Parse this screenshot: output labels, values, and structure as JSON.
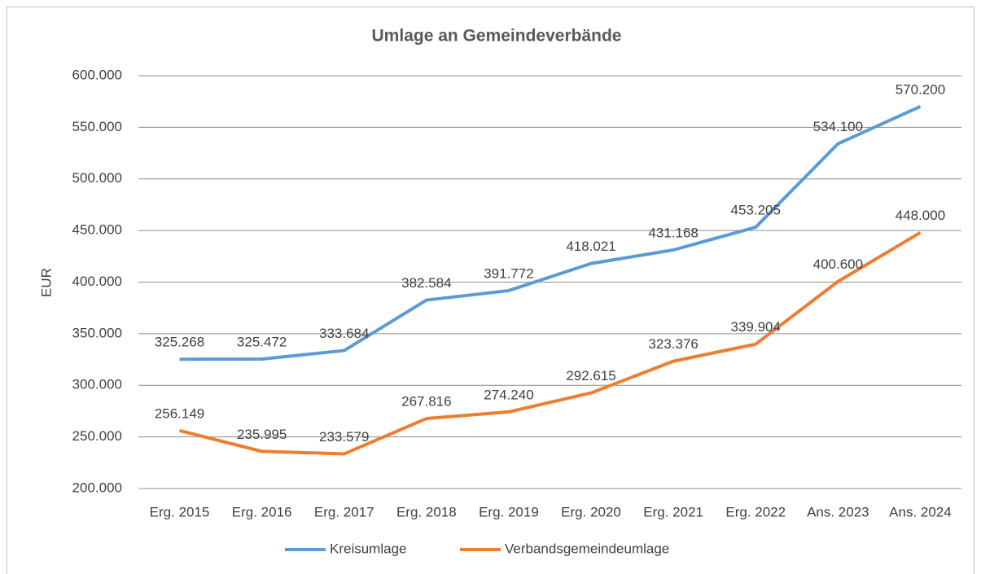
{
  "chart_data": {
    "type": "line",
    "title": "Umlage an Gemeindeverbände",
    "y_label": "EUR",
    "categories": [
      "Erg. 2015",
      "Erg. 2016",
      "Erg. 2017",
      "Erg. 2018",
      "Erg. 2019",
      "Erg. 2020",
      "Erg. 2021",
      "Erg. 2022",
      "Ans. 2023",
      "Ans. 2024"
    ],
    "series": [
      {
        "name": "Kreisumlage",
        "color": "#5b9bd5",
        "values": [
          325268,
          325472,
          333684,
          382584,
          391772,
          418021,
          431168,
          453205,
          534100,
          570200
        ],
        "value_labels": [
          "325.268",
          "325.472",
          "333.684",
          "382.584",
          "391.772",
          "418.021",
          "431.168",
          "453.205",
          "534.100",
          "570.200"
        ]
      },
      {
        "name": "Verbandsgemeindeumlage",
        "color": "#ed7d31",
        "values": [
          256149,
          235995,
          233579,
          267816,
          274240,
          292615,
          323376,
          339904,
          400600,
          448000
        ],
        "value_labels": [
          "256.149",
          "235.995",
          "233.579",
          "267.816",
          "274.240",
          "292.615",
          "323.376",
          "339.904",
          "400.600",
          "448.000"
        ]
      }
    ],
    "ylim": [
      200000,
      600000
    ],
    "yticks": [
      {
        "value": 200000,
        "label": "200.000"
      },
      {
        "value": 250000,
        "label": "250.000"
      },
      {
        "value": 300000,
        "label": "300.000"
      },
      {
        "value": 350000,
        "label": "350.000"
      },
      {
        "value": 400000,
        "label": "400.000"
      },
      {
        "value": 450000,
        "label": "450.000"
      },
      {
        "value": 500000,
        "label": "500.000"
      },
      {
        "value": 550000,
        "label": "550.000"
      },
      {
        "value": 600000,
        "label": "600.000"
      }
    ],
    "grid": true,
    "legend": "bottom"
  }
}
